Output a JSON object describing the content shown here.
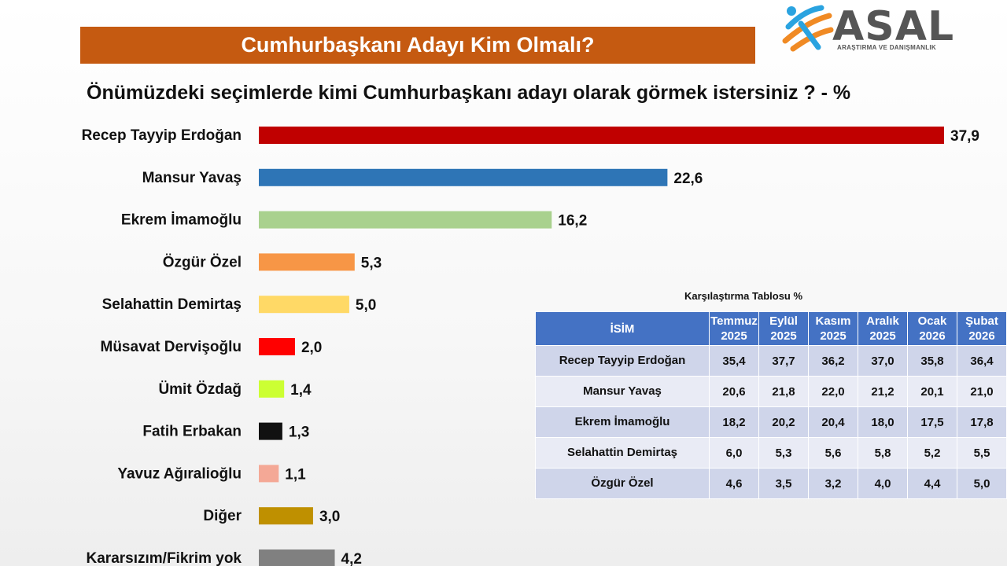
{
  "banner": {
    "title": "Cumhurbaşkanı Adayı Kim Olmalı?"
  },
  "logo": {
    "word": "ASAL",
    "subtitle": "ARAŞTIRMA VE DANIŞMANLIK"
  },
  "question": "Önümüzdeki seçimlerde kimi Cumhurbaşkanı adayı olarak görmek istersiniz ? - %",
  "chart_data": {
    "type": "bar",
    "orientation": "horizontal",
    "title": "Önümüzdeki seçimlerde kimi Cumhurbaşkanı adayı olarak görmek istersiniz ? - %",
    "categories": [
      "Recep Tayyip Erdoğan",
      "Mansur Yavaş",
      "Ekrem İmamoğlu",
      "Özgür Özel",
      "Selahattin Demirtaş",
      "Müsavat Dervişoğlu",
      "Ümit Özdağ",
      "Fatih Erbakan",
      "Yavuz Ağıralioğlu",
      "Diğer",
      "Kararsızım/Fikrim yok"
    ],
    "values": [
      37.9,
      22.6,
      16.2,
      5.3,
      5.0,
      2.0,
      1.4,
      1.3,
      1.1,
      3.0,
      4.2
    ],
    "labels": [
      "37,9",
      "22,6",
      "16,2",
      "5,3",
      "5,0",
      "2,0",
      "1,4",
      "1,3",
      "1,1",
      "3,0",
      "4,2"
    ],
    "colors": [
      "#c00000",
      "#2e75b6",
      "#a9d18e",
      "#f79646",
      "#ffd966",
      "#ff0000",
      "#ccff33",
      "#111111",
      "#f4a896",
      "#bf9000",
      "#808080"
    ],
    "xlim": [
      0,
      37.9
    ],
    "grid": false,
    "legend": "none"
  },
  "table": {
    "title": "Karşılaştırma Tablosu %",
    "header_name": "İSİM",
    "columns": [
      {
        "month": "Temmuz",
        "year": "2025"
      },
      {
        "month": "Eylül",
        "year": "2025"
      },
      {
        "month": "Kasım",
        "year": "2025"
      },
      {
        "month": "Aralık",
        "year": "2025"
      },
      {
        "month": "Ocak",
        "year": "2026"
      },
      {
        "month": "Şubat",
        "year": "2026"
      }
    ],
    "rows": [
      {
        "name": "Recep Tayyip Erdoğan",
        "values": [
          "35,4",
          "37,7",
          "36,2",
          "37,0",
          "35,8",
          "36,4"
        ]
      },
      {
        "name": "Mansur Yavaş",
        "values": [
          "20,6",
          "21,8",
          "22,0",
          "21,2",
          "20,1",
          "21,0"
        ]
      },
      {
        "name": "Ekrem İmamoğlu",
        "values": [
          "18,2",
          "20,2",
          "20,4",
          "18,0",
          "17,5",
          "17,8"
        ]
      },
      {
        "name": "Selahattin Demirtaş",
        "values": [
          "6,0",
          "5,3",
          "5,6",
          "5,8",
          "5,2",
          "5,5"
        ]
      },
      {
        "name": "Özgür Özel",
        "values": [
          "4,6",
          "3,5",
          "3,2",
          "4,0",
          "4,4",
          "5,0"
        ]
      }
    ]
  }
}
